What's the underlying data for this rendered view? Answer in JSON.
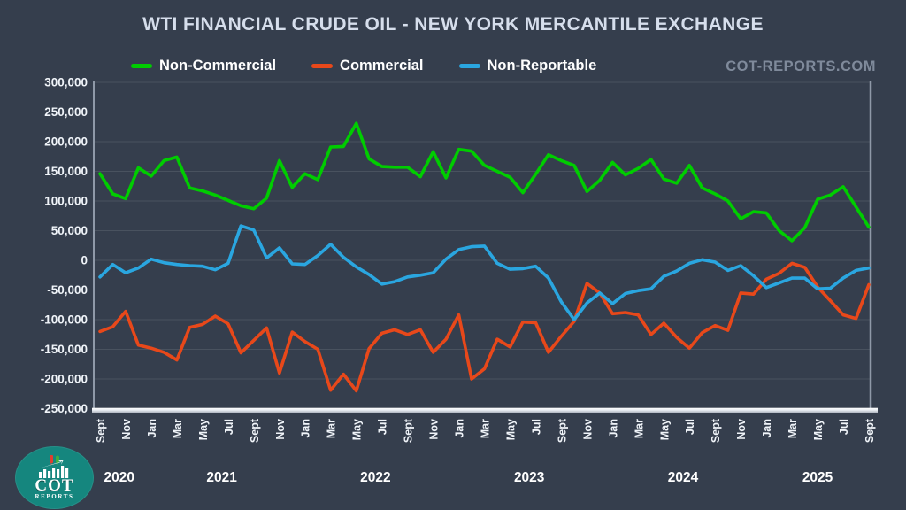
{
  "header": {
    "title": "WTI FINANCIAL CRUDE OIL - NEW YORK MERCANTILE EXCHANGE",
    "watermark": "COT-REPORTS.COM"
  },
  "legend": [
    {
      "label": "Non-Commercial",
      "color": "#00cd00"
    },
    {
      "label": "Commercial",
      "color": "#e8481a"
    },
    {
      "label": "Non-Reportable",
      "color": "#2aa6e0"
    }
  ],
  "logo": {
    "line1": "COT",
    "line2": "REPORTS",
    "circle_color": "#15867e",
    "candle_red": "#e03f2e",
    "candle_green": "#3fae3f"
  },
  "colors": {
    "background": "#353e4d",
    "gridline": "#49525f",
    "axis_line": "#8f99a8",
    "bottom_bar_top": "#ffffff",
    "bottom_bar_bottom": "#a7aeb9",
    "title_text": "#d6deec",
    "tick_text": "#f0f4f9",
    "year_text": "#ffffff"
  },
  "chart_data": {
    "type": "line",
    "title": "WTI FINANCIAL CRUDE OIL - NEW YORK MERCANTILE EXCHANGE",
    "x_start": "2020-09",
    "x_end": "2025-09",
    "x_interval": "1 month",
    "n_points": 61,
    "ylim": [
      -250000,
      300000
    ],
    "ytick_step": 50000,
    "grid": true,
    "legend_position": "top",
    "y_tick_labels": [
      "300,000",
      "250,000",
      "200,000",
      "150,000",
      "100,000",
      "50,000",
      "0",
      "-50,000",
      "-100,000",
      "-150,000",
      "-200,000",
      "-250,000"
    ],
    "x_tick_labels": [
      "Sept",
      "Nov",
      "Jan",
      "Mar",
      "May",
      "Jul",
      "Sept",
      "Nov",
      "Jan",
      "Mar",
      "May",
      "Jul",
      "Sept",
      "Nov",
      "Jan",
      "Mar",
      "May",
      "Jul",
      "Sept",
      "Nov",
      "Jan",
      "Mar",
      "May",
      "Jul",
      "Sept",
      "Nov",
      "Jan",
      "Mar",
      "May",
      "Jul",
      "Sept"
    ],
    "year_labels": [
      "2020",
      "2021",
      "2022",
      "2023",
      "2024",
      "2025"
    ],
    "series": [
      {
        "name": "Non-Commercial",
        "color": "#00cd00",
        "values": [
          146000,
          112000,
          104000,
          156000,
          142000,
          168000,
          174000,
          122000,
          117000,
          110000,
          101000,
          92000,
          87000,
          105000,
          168000,
          123000,
          146000,
          136000,
          191000,
          192000,
          231000,
          171000,
          158000,
          157000,
          157000,
          141000,
          183000,
          139000,
          187000,
          184000,
          160000,
          150000,
          140000,
          114000,
          145000,
          178000,
          168000,
          160000,
          116000,
          135000,
          165000,
          144000,
          155000,
          170000,
          137000,
          130000,
          160000,
          122000,
          112000,
          100000,
          70000,
          82000,
          80000,
          50000,
          33000,
          55000,
          103000,
          110000,
          124000,
          90000,
          56000
        ]
      },
      {
        "name": "Commercial",
        "color": "#e8481a",
        "values": [
          -120000,
          -112000,
          -86000,
          -143000,
          -148000,
          -155000,
          -168000,
          -113000,
          -108000,
          -94000,
          -107000,
          -156000,
          -135000,
          -114000,
          -190000,
          -121000,
          -137000,
          -150000,
          -219000,
          -192000,
          -220000,
          -149000,
          -123000,
          -117000,
          -125000,
          -117000,
          -155000,
          -133000,
          -92000,
          -200000,
          -183000,
          -133000,
          -146000,
          -104000,
          -105000,
          -155000,
          -128000,
          -103000,
          -39000,
          -55000,
          -90000,
          -88000,
          -92000,
          -125000,
          -106000,
          -130000,
          -148000,
          -122000,
          -110000,
          -118000,
          -55000,
          -57000,
          -32000,
          -22000,
          -5000,
          -12000,
          -45000,
          -68000,
          -92000,
          -98000,
          -41000
        ]
      },
      {
        "name": "Non-Reportable",
        "color": "#2aa6e0",
        "values": [
          -28000,
          -7000,
          -21000,
          -13000,
          2000,
          -4000,
          -7000,
          -9000,
          -10000,
          -16000,
          -5000,
          58000,
          51000,
          4000,
          21000,
          -6000,
          -7000,
          8000,
          27000,
          5000,
          -11000,
          -24000,
          -40000,
          -36000,
          -28000,
          -25000,
          -21000,
          2000,
          18000,
          23000,
          24000,
          -5000,
          -15000,
          -14000,
          -10000,
          -30000,
          -70000,
          -100000,
          -72000,
          -55000,
          -73000,
          -56000,
          -51000,
          -48000,
          -27000,
          -18000,
          -5000,
          1000,
          -3000,
          -17000,
          -9000,
          -26000,
          -46000,
          -38000,
          -30000,
          -30000,
          -48000,
          -47000,
          -30000,
          -17000,
          -13000
        ]
      }
    ]
  }
}
